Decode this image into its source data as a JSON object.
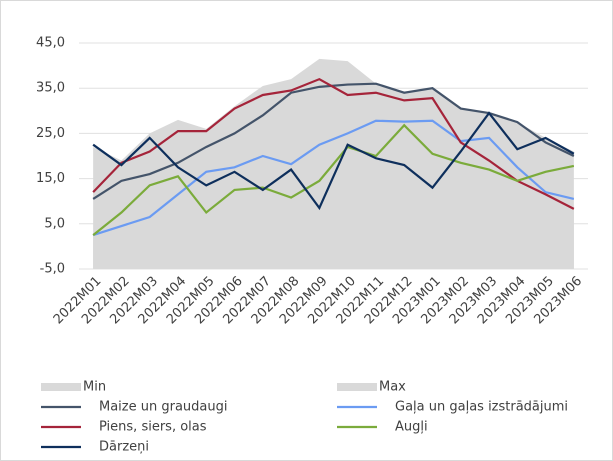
{
  "chart_data": {
    "type": "line",
    "categories": [
      "2022M01",
      "2022M02",
      "2022M03",
      "2022M04",
      "2022M05",
      "2022M06",
      "2022M07",
      "2022M08",
      "2022M09",
      "2022M10",
      "2022M11",
      "2022M12",
      "2023M01",
      "2023M02",
      "2023M03",
      "2023M04",
      "2023M05",
      "2023M06"
    ],
    "ylim": [
      -5,
      45
    ],
    "yticks": [
      {
        "value": -5,
        "label": "-5,0"
      },
      {
        "value": 5,
        "label": "5,0"
      },
      {
        "value": 15,
        "label": "15,0"
      },
      {
        "value": 25,
        "label": "25,0"
      },
      {
        "value": 35,
        "label": "35,0"
      },
      {
        "value": 45,
        "label": "45,0"
      }
    ],
    "grid": true,
    "areas": [
      {
        "name": "Min",
        "color": "#d9d9d9",
        "values": [
          2.5,
          4.5,
          6.5,
          11.5,
          7.5,
          12.5,
          12.5,
          10.8,
          8.5,
          22,
          19.5,
          18,
          13,
          18.5,
          17,
          14,
          11.5,
          8
        ]
      },
      {
        "name": "Max",
        "color": "#d9d9d9",
        "values": [
          22,
          19,
          25,
          28,
          26,
          31,
          35.5,
          37,
          41.5,
          41,
          36,
          34,
          35,
          30.5,
          29.5,
          27.5,
          24,
          21
        ]
      }
    ],
    "series": [
      {
        "name": "Maize un graudaugi",
        "color": "#44546a",
        "values": [
          10.5,
          14.5,
          16,
          18.5,
          22,
          25,
          29,
          34,
          35.3,
          35.8,
          36,
          34,
          35,
          30.5,
          29.5,
          27.5,
          23,
          20
        ]
      },
      {
        "name": "Gaļa un gaļas izstrādājumi",
        "color": "#6b9bf2",
        "values": [
          2.5,
          4.5,
          6.5,
          11.5,
          16.5,
          17.5,
          20,
          18.2,
          22.5,
          25,
          27.8,
          27.6,
          27.8,
          23.3,
          24,
          17.5,
          12,
          10.5
        ]
      },
      {
        "name": "Piens, siers, olas",
        "color": "#a5243a",
        "values": [
          12,
          18.5,
          21,
          25.5,
          25.5,
          30.5,
          33.5,
          34.5,
          37,
          33.5,
          34,
          32.3,
          32.8,
          23,
          19,
          14.5,
          11.5,
          8.3
        ]
      },
      {
        "name": "Augļi",
        "color": "#7bab3b",
        "values": [
          2.5,
          7.5,
          13.5,
          15.5,
          7.5,
          12.5,
          13,
          10.8,
          14.5,
          22,
          20,
          26.8,
          20.5,
          18.5,
          17,
          14.5,
          16.5,
          17.8
        ]
      },
      {
        "name": "Dārzeņi",
        "color": "#0e2f5c",
        "values": [
          22.5,
          18,
          24,
          17.5,
          13.5,
          16.5,
          12.5,
          17,
          8.5,
          22.5,
          19.5,
          18,
          13,
          21,
          29.5,
          21.5,
          24,
          20.5
        ]
      }
    ]
  }
}
